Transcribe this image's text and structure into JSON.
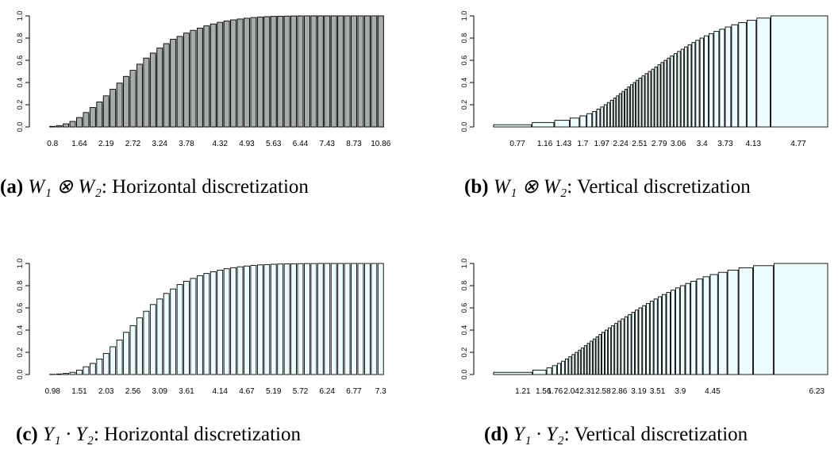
{
  "chart_data": [
    {
      "type": "bar",
      "panel": "a",
      "caption": {
        "label": "(a)",
        "math": "W₁ ⊗ W₂",
        "text": ": Horizontal discretization"
      },
      "ylim": [
        0,
        1
      ],
      "yticks": [
        "0.0",
        "0.2",
        "0.4",
        "0.6",
        "0.8",
        "1.0"
      ],
      "bar_widths": "equal",
      "xtick_labels": [
        "0.8",
        "1.64",
        "2.19",
        "2.72",
        "3.24",
        "3.78",
        "4.32",
        "4.93",
        "5.63",
        "6.44",
        "7.43",
        "8.73",
        "10.86"
      ],
      "series": [
        {
          "name": "",
          "color": "#eefcfc",
          "values": [
            0.003,
            0.008,
            0.02,
            0.04,
            0.07,
            0.11,
            0.15,
            0.2,
            0.25,
            0.31,
            0.36,
            0.42,
            0.48,
            0.53,
            0.59,
            0.64,
            0.68,
            0.73,
            0.77,
            0.8,
            0.83,
            0.86,
            0.88,
            0.9,
            0.92,
            0.935,
            0.948,
            0.96,
            0.968,
            0.976,
            0.982,
            0.987,
            0.991,
            0.994,
            0.996,
            0.997,
            0.998,
            0.999,
            0.999,
            1,
            1,
            1,
            1,
            1,
            1,
            1,
            1,
            1,
            1,
            1
          ]
        },
        {
          "name": "",
          "color": "#a8acac",
          "values": [
            0.005,
            0.012,
            0.028,
            0.05,
            0.085,
            0.13,
            0.175,
            0.225,
            0.28,
            0.34,
            0.395,
            0.455,
            0.51,
            0.565,
            0.62,
            0.665,
            0.71,
            0.75,
            0.79,
            0.815,
            0.845,
            0.87,
            0.89,
            0.91,
            0.927,
            0.942,
            0.954,
            0.964,
            0.972,
            0.979,
            0.985,
            0.989,
            0.993,
            0.995,
            0.997,
            0.998,
            0.999,
            0.999,
            1,
            1,
            1,
            1,
            1,
            1,
            1,
            1,
            1,
            1,
            1,
            1
          ]
        }
      ]
    },
    {
      "type": "bar",
      "panel": "b",
      "caption": {
        "label": "(b)",
        "math": "W₁ ⊗ W₂",
        "text": ": Vertical discretization"
      },
      "ylim": [
        0,
        1
      ],
      "yticks": [
        "0.0",
        "0.2",
        "0.4",
        "0.6",
        "0.8",
        "1.0"
      ],
      "bar_widths": "variable",
      "xtick_labels": [
        "0.77",
        "1.16",
        "1.43",
        "1.7",
        "1.97",
        "2.24",
        "2.51",
        "2.79",
        "3.06",
        "3.4",
        "3.73",
        "4.13",
        "4.77"
      ],
      "xtick_positions": [
        0.77,
        1.16,
        1.43,
        1.7,
        1.97,
        2.24,
        2.51,
        2.79,
        3.06,
        3.4,
        3.73,
        4.13,
        4.77
      ],
      "x_range": [
        0.43,
        5.2
      ],
      "series": [
        {
          "name": "",
          "color": "#eefcfc",
          "values": [
            0.02,
            0.04,
            0.06,
            0.08,
            0.1,
            0.12,
            0.14,
            0.16,
            0.18,
            0.2,
            0.22,
            0.24,
            0.26,
            0.28,
            0.3,
            0.32,
            0.34,
            0.36,
            0.38,
            0.4,
            0.42,
            0.44,
            0.46,
            0.48,
            0.5,
            0.52,
            0.54,
            0.56,
            0.58,
            0.6,
            0.62,
            0.64,
            0.66,
            0.68,
            0.7,
            0.72,
            0.74,
            0.76,
            0.78,
            0.8,
            0.82,
            0.84,
            0.86,
            0.88,
            0.9,
            0.92,
            0.94,
            0.96,
            0.98,
            1.0
          ],
          "edges": [
            0.43,
            0.98,
            1.3,
            1.52,
            1.66,
            1.76,
            1.84,
            1.9,
            1.955,
            2.005,
            2.05,
            2.095,
            2.14,
            2.18,
            2.22,
            2.26,
            2.3,
            2.34,
            2.38,
            2.42,
            2.46,
            2.5,
            2.545,
            2.59,
            2.635,
            2.68,
            2.725,
            2.77,
            2.815,
            2.86,
            2.905,
            2.95,
            3.0,
            3.05,
            3.1,
            3.15,
            3.2,
            3.255,
            3.31,
            3.37,
            3.43,
            3.5,
            3.57,
            3.65,
            3.73,
            3.82,
            3.92,
            4.04,
            4.18,
            4.38,
            5.2
          ]
        }
      ]
    },
    {
      "type": "bar",
      "panel": "c",
      "caption": {
        "label": "(c)",
        "math": "Y₁ · Y₂",
        "text": ": Horizontal discretization"
      },
      "ylim": [
        0,
        1
      ],
      "yticks": [
        "0.0",
        "0.2",
        "0.4",
        "0.6",
        "0.8",
        "1.0"
      ],
      "bar_widths": "equal",
      "xtick_labels": [
        "0.98",
        "1.51",
        "2.03",
        "2.56",
        "3.09",
        "3.61",
        "4.14",
        "4.67",
        "5.19",
        "5.72",
        "6.24",
        "6.77",
        "7.3"
      ],
      "series": [
        {
          "name": "",
          "color": "#eefcfc",
          "values": [
            0.002,
            0.005,
            0.01,
            0.02,
            0.04,
            0.07,
            0.1,
            0.14,
            0.19,
            0.25,
            0.31,
            0.38,
            0.44,
            0.51,
            0.57,
            0.63,
            0.68,
            0.73,
            0.77,
            0.81,
            0.84,
            0.865,
            0.89,
            0.91,
            0.925,
            0.94,
            0.952,
            0.962,
            0.97,
            0.977,
            0.983,
            0.987,
            0.99,
            0.993,
            0.995,
            0.996,
            0.997,
            0.998,
            0.999,
            0.999,
            1,
            1,
            1,
            1,
            1,
            1,
            1,
            1,
            1,
            1
          ]
        }
      ]
    },
    {
      "type": "bar",
      "panel": "d",
      "caption": {
        "label": "(d)",
        "math": "Y₁ · Y₂",
        "text": ": Vertical discretization"
      },
      "ylim": [
        0,
        1
      ],
      "yticks": [
        "0.0",
        "0.2",
        "0.4",
        "0.6",
        "0.8",
        "1.0"
      ],
      "bar_widths": "variable",
      "xtick_labels": [
        "1.21",
        "1.56",
        "1.76",
        "2.04",
        "2.31",
        "2.58",
        "2.86",
        "3.19",
        "3.51",
        "3.9",
        "4.45",
        "6.23"
      ],
      "xtick_positions": [
        1.21,
        1.56,
        1.76,
        2.04,
        2.31,
        2.58,
        2.86,
        3.19,
        3.51,
        3.9,
        4.45,
        6.23
      ],
      "x_range": [
        0.71,
        6.43
      ],
      "series": [
        {
          "name": "",
          "color": "#eefcfc",
          "values": [
            0.02,
            0.04,
            0.06,
            0.08,
            0.1,
            0.12,
            0.14,
            0.16,
            0.18,
            0.2,
            0.22,
            0.24,
            0.26,
            0.28,
            0.3,
            0.32,
            0.34,
            0.36,
            0.38,
            0.4,
            0.42,
            0.44,
            0.46,
            0.48,
            0.5,
            0.52,
            0.54,
            0.56,
            0.58,
            0.6,
            0.62,
            0.64,
            0.66,
            0.68,
            0.7,
            0.72,
            0.74,
            0.76,
            0.78,
            0.8,
            0.82,
            0.84,
            0.86,
            0.88,
            0.9,
            0.92,
            0.94,
            0.96,
            0.98,
            1.0
          ],
          "edges": [
            0.71,
            1.38,
            1.62,
            1.715,
            1.8,
            1.87,
            1.935,
            1.995,
            2.05,
            2.105,
            2.16,
            2.21,
            2.26,
            2.31,
            2.36,
            2.41,
            2.46,
            2.51,
            2.56,
            2.615,
            2.67,
            2.725,
            2.78,
            2.835,
            2.89,
            2.95,
            3.01,
            3.07,
            3.13,
            3.19,
            3.255,
            3.32,
            3.385,
            3.45,
            3.52,
            3.59,
            3.665,
            3.74,
            3.82,
            3.9,
            3.99,
            4.08,
            4.18,
            4.29,
            4.41,
            4.55,
            4.71,
            4.9,
            5.15,
            5.5,
            6.43
          ]
        }
      ]
    }
  ]
}
